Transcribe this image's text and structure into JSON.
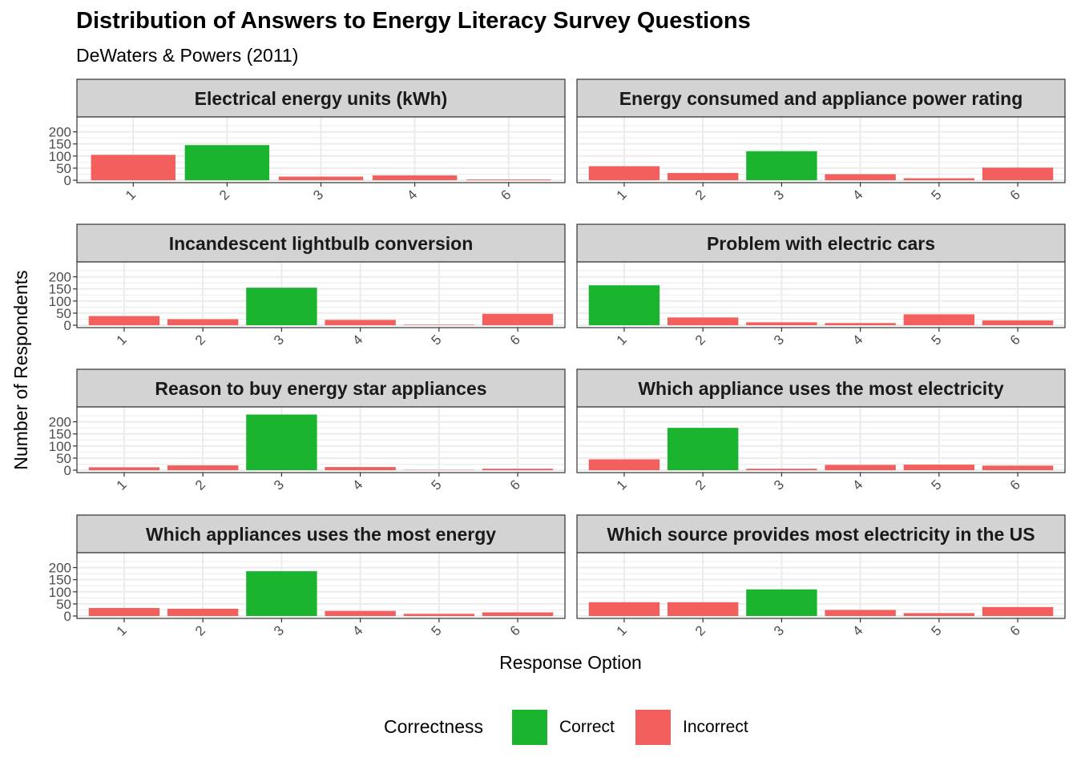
{
  "title": "Distribution of Answers to Energy Literacy Survey Questions",
  "subtitle": "DeWaters & Powers (2011)",
  "colors": {
    "correct": "#1BB42F",
    "incorrect": "#F25F5C",
    "strip_fill": "#D3D3D3",
    "grid": "#EBEBEB"
  },
  "chart_data": {
    "type": "bar",
    "facet": "wrap",
    "ncol": 2,
    "xlabel": "Response Option",
    "ylabel": "Number of Respondents",
    "yticks": [
      0,
      50,
      100,
      150,
      200
    ],
    "ylim": [
      0,
      235
    ],
    "x_tick_angle": 45,
    "legend": {
      "title": "Correctness",
      "position": "bottom",
      "entries": [
        "Correct",
        "Incorrect"
      ]
    },
    "panels": [
      {
        "title": "Electrical energy units (kWh)",
        "categories": [
          "1",
          "2",
          "3",
          "4",
          "6"
        ],
        "values": [
          105,
          145,
          15,
          20,
          3
        ],
        "correct": "2"
      },
      {
        "title": "Energy consumed and appliance power rating",
        "categories": [
          "1",
          "2",
          "3",
          "4",
          "5",
          "6"
        ],
        "values": [
          58,
          30,
          120,
          25,
          8,
          52
        ],
        "correct": "3"
      },
      {
        "title": "Incandescent lightbulb conversion",
        "categories": [
          "1",
          "2",
          "3",
          "4",
          "5",
          "6"
        ],
        "values": [
          38,
          25,
          155,
          22,
          2,
          47
        ],
        "correct": "3"
      },
      {
        "title": "Problem with electric cars",
        "categories": [
          "1",
          "2",
          "3",
          "4",
          "5",
          "6"
        ],
        "values": [
          165,
          32,
          12,
          9,
          45,
          20
        ],
        "correct": "1"
      },
      {
        "title": "Reason to buy energy star appliances",
        "categories": [
          "1",
          "2",
          "3",
          "4",
          "5",
          "6"
        ],
        "values": [
          12,
          20,
          230,
          13,
          1,
          6
        ],
        "correct": "3"
      },
      {
        "title": "Which appliance uses the most electricity",
        "categories": [
          "1",
          "2",
          "3",
          "4",
          "5",
          "6"
        ],
        "values": [
          45,
          175,
          6,
          22,
          23,
          19
        ],
        "correct": "2"
      },
      {
        "title": "Which appliances uses the most energy",
        "categories": [
          "1",
          "2",
          "3",
          "4",
          "5",
          "6"
        ],
        "values": [
          33,
          30,
          185,
          21,
          9,
          15
        ],
        "correct": "3"
      },
      {
        "title": "Which source provides most electricity in the US",
        "categories": [
          "1",
          "2",
          "3",
          "4",
          "5",
          "6"
        ],
        "values": [
          57,
          57,
          110,
          25,
          12,
          37
        ],
        "correct": "3"
      }
    ]
  }
}
